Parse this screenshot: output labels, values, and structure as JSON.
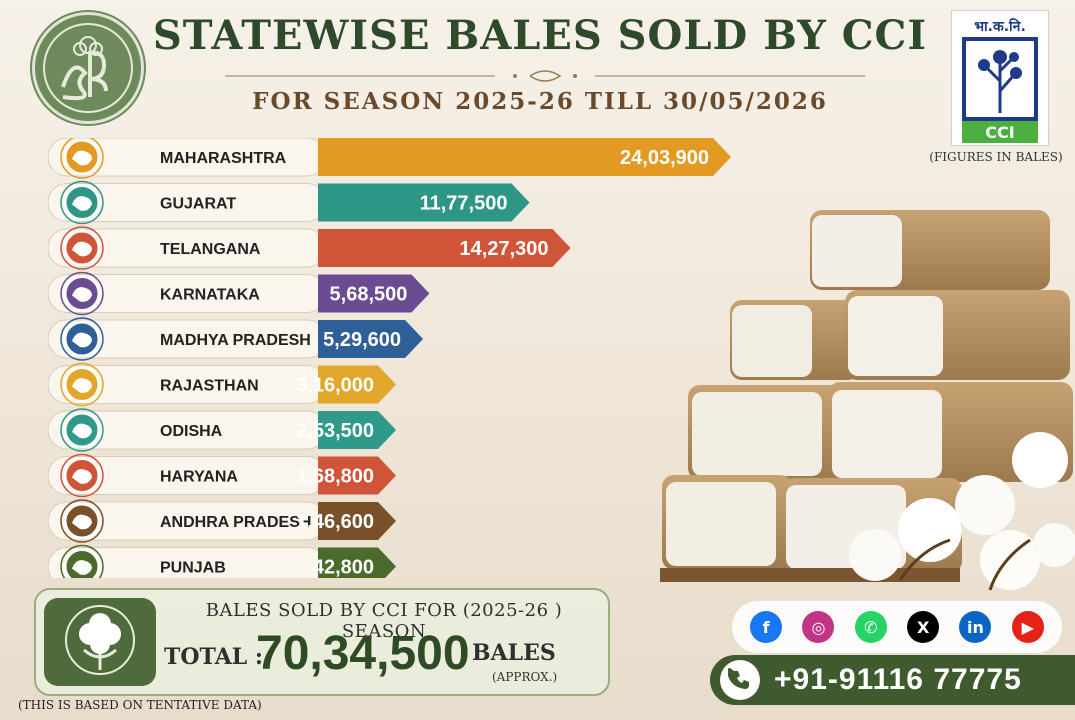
{
  "header": {
    "title": "STATEWISE BALES SOLD BY CCI",
    "subtitle": "FOR SEASON 2025-26 TILL 30/05/2026",
    "brand_logo_text": "भा.क.नि.",
    "cci_logo_text": "CCI",
    "units_note": "(FIGURES IN BALES)"
  },
  "chart_data": {
    "type": "bar",
    "orientation": "horizontal",
    "categories": [
      "MAHARASHTRA",
      "GUJARAT",
      "TELANGANA",
      "KARNATAKA",
      "MADHYA PRADESH",
      "RAJASTHAN",
      "ODISHA",
      "HARYANA",
      "ANDHRA PRADESH",
      "PUNJAB"
    ],
    "values": [
      2403900,
      1177500,
      1427300,
      568500,
      529600,
      316000,
      253500,
      168800,
      146600,
      42800
    ],
    "value_labels": [
      "24,03,900",
      "11,77,500",
      "14,27,300",
      "5,68,500",
      "5,29,600",
      "3,16,000",
      "2,53,500",
      "1,68,800",
      "1,46,600",
      "42,800"
    ],
    "colors": [
      "#e39a22",
      "#2e9687",
      "#cf5438",
      "#6b4b91",
      "#2f5f97",
      "#e2a62b",
      "#2f9a8a",
      "#cf5438",
      "#7a5029",
      "#4a6b2c"
    ],
    "xlabel": "",
    "ylabel": "",
    "grid": false,
    "legend": "none"
  },
  "total": {
    "line1": "BALES SOLD BY CCI FOR (2025-26 ) SEASON",
    "label": "TOTAL :",
    "value": "70,34,500",
    "unit": "BALES",
    "approx": "(APPROX.)"
  },
  "footnote": "(THIS IS BASED ON TENTATIVE DATA)",
  "social": {
    "icons": [
      "facebook-icon",
      "instagram-icon",
      "whatsapp-icon",
      "x-icon",
      "linkedin-icon",
      "youtube-icon"
    ],
    "colors": [
      "#1877f2",
      "#c13584",
      "#25d366",
      "#000000",
      "#0a66c2",
      "#e62117"
    ]
  },
  "contact": {
    "phone": "+91-91116 77775"
  }
}
